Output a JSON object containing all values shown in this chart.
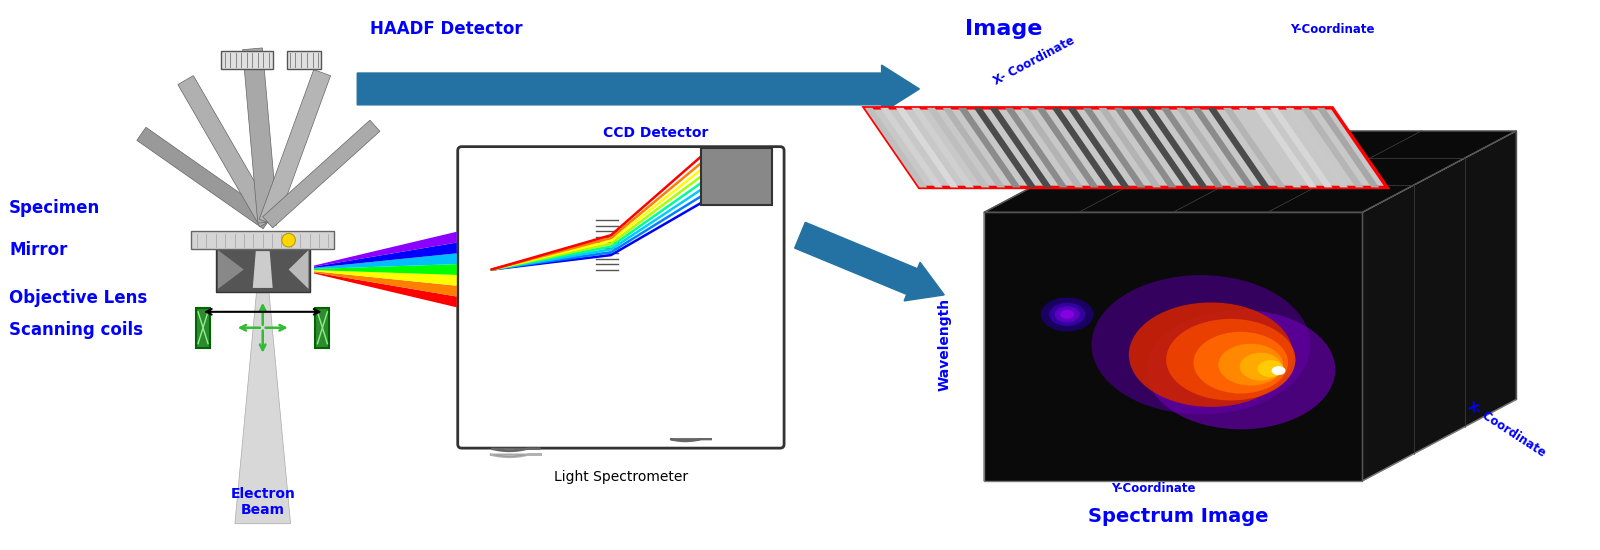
{
  "bg_color": "#ffffff",
  "blue": "#0000ff",
  "darrow": "#2471A3",
  "gray_dark": "#444444",
  "gray_med": "#888888",
  "gray_light": "#cccccc",
  "green": "#228B22",
  "yellow": "#FFD700",
  "red": "#FF0000",
  "labels": {
    "haadf": "HAADF Detector",
    "ccd": "CCD Detector",
    "specimen": "Specimen",
    "mirror": "Mirror",
    "obj_lens": "Objective Lens",
    "scan_coils": "Scanning coils",
    "ebeam": "Electron\nBeam",
    "spectrometer": "Light Spectrometer",
    "image": "Image",
    "spectrum_image": "Spectrum Image",
    "wavelength": "Wavelength",
    "x_coord_top": "X- Coordinate",
    "y_coord_top": "Y-Coordinate",
    "x_coord_bot": "X- Coordinate",
    "y_coord_bot": "Y-Coordinate"
  },
  "figsize": [
    16.0,
    5.5
  ],
  "dpi": 100
}
